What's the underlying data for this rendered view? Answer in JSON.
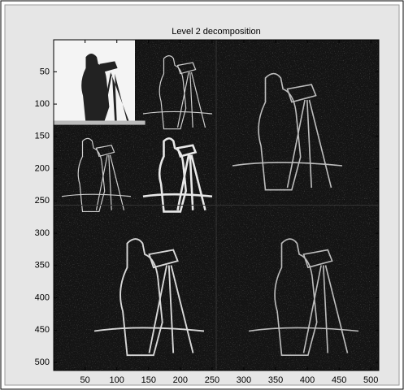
{
  "chart_data": {
    "type": "image",
    "title": "Level 2 decomposition",
    "xlim": [
      0.5,
      512.5
    ],
    "ylim": [
      0.5,
      512.5
    ],
    "y_reversed": true,
    "xticks": [
      50,
      100,
      150,
      200,
      250,
      300,
      350,
      400,
      450,
      500
    ],
    "yticks": [
      50,
      100,
      150,
      200,
      250,
      300,
      350,
      400,
      450,
      500
    ]
  }
}
